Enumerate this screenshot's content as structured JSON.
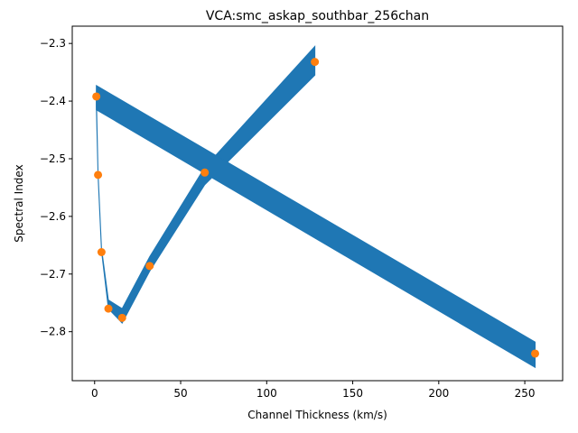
{
  "chart_data": {
    "type": "line",
    "title": "VCA:smc_askap_southbar_256chan",
    "xlabel": "Channel Thickness (km/s)",
    "ylabel": "Spectral Index",
    "xlim": [
      -13,
      272
    ],
    "ylim": [
      -2.885,
      -2.27
    ],
    "x_ticks": [
      0,
      50,
      100,
      150,
      200,
      250
    ],
    "y_ticks": [
      -2.3,
      -2.4,
      -2.5,
      -2.6,
      -2.7,
      -2.8
    ],
    "y_tick_labels": [
      "−2.3",
      "−2.4",
      "−2.5",
      "−2.6",
      "−2.7",
      "−2.8"
    ],
    "grid": false,
    "series": [
      {
        "kind": "scatter",
        "color": "#ff7f0e",
        "x": [
          1,
          2,
          4,
          8,
          16,
          32,
          64,
          128,
          256
        ],
        "y": [
          -2.392,
          -2.528,
          -2.662,
          -2.76,
          -2.776,
          -2.686,
          -2.524,
          -2.332,
          -2.838
        ]
      },
      {
        "kind": "fit-band",
        "color": "#1f77b4",
        "x": [
          1,
          2,
          4,
          8,
          16,
          32,
          64,
          128
        ],
        "lower": [
          -2.41,
          -2.53,
          -2.66,
          -2.76,
          -2.785,
          -2.695,
          -2.545,
          -2.355
        ],
        "upper": [
          -2.39,
          -2.525,
          -2.655,
          -2.745,
          -2.76,
          -2.67,
          -2.515,
          -2.305
        ]
      },
      {
        "kind": "fit-band",
        "color": "#1f77b4",
        "x": [
          1,
          256
        ],
        "lower": [
          -2.415,
          -2.862
        ],
        "upper": [
          -2.373,
          -2.818
        ]
      }
    ]
  }
}
